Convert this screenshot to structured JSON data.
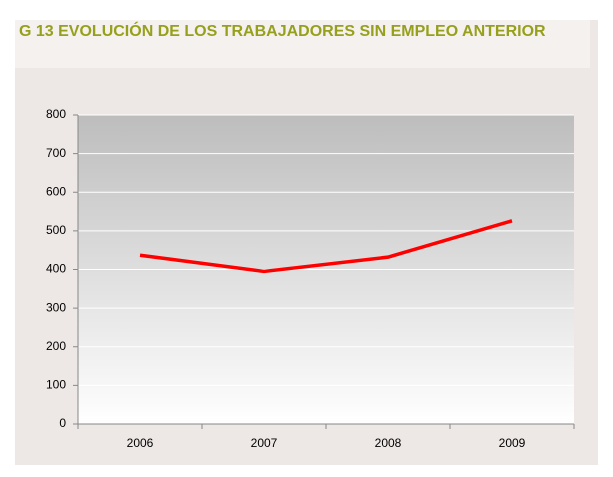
{
  "chart_data": {
    "type": "line",
    "title": "G 13 EVOLUCIÓN DE LOS TRABAJADORES SIN EMPLEO ANTERIOR",
    "categories": [
      "2006",
      "2007",
      "2008",
      "2009"
    ],
    "series": [
      {
        "name": "Trabajadores sin empleo anterior",
        "color": "#ff0000",
        "values": [
          437,
          395,
          432,
          526
        ]
      }
    ],
    "ylim": [
      0,
      800
    ],
    "yticks": [
      0,
      100,
      200,
      300,
      400,
      500,
      600,
      700,
      800
    ],
    "grid": true
  }
}
